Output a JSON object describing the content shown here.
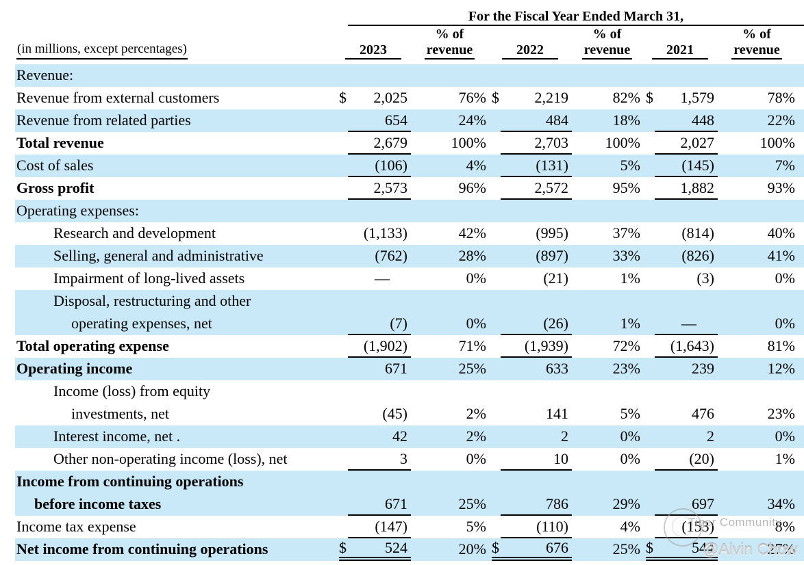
{
  "colors": {
    "row_band": "#c9e8f8",
    "text": "#000000",
    "rule": "#000000",
    "watermark": "#acacac"
  },
  "table": {
    "fiscal_header": "For the Fiscal Year Ended March 31,",
    "left_header": "(in millions, except percentages)",
    "currency_symbol": "$",
    "em_dash": "—",
    "columns": [
      {
        "label": "2023"
      },
      {
        "line1": "% of",
        "line2": "revenue"
      },
      {
        "label": "2022"
      },
      {
        "line1": "% of",
        "line2": "revenue"
      },
      {
        "label": "2021"
      },
      {
        "line1": "% of",
        "line2": "revenue"
      }
    ],
    "rows": [
      {
        "label": "Revenue:",
        "bg": "blue",
        "vals": []
      },
      {
        "label": "Revenue from external customers",
        "bg": "white",
        "dollar": true,
        "vals": [
          "2,025",
          "76%",
          "2,219",
          "82%",
          "1,579",
          "78%"
        ]
      },
      {
        "label": "Revenue from related parties",
        "bg": "blue",
        "ul": true,
        "vals": [
          "654",
          "24%",
          "484",
          "18%",
          "448",
          "22%"
        ]
      },
      {
        "label": "Total revenue",
        "bold": true,
        "bg": "white",
        "ul": true,
        "vals": [
          "2,679",
          "100%",
          "2,703",
          "100%",
          "2,027",
          "100%"
        ]
      },
      {
        "label": "Cost of sales",
        "bg": "blue",
        "ul": true,
        "vals": [
          "(106)",
          "4%",
          "(131)",
          "5%",
          "(145)",
          "7%"
        ]
      },
      {
        "label": "Gross profit",
        "bold": true,
        "bg": "white",
        "ul": true,
        "vals": [
          "2,573",
          "96%",
          "2,572",
          "95%",
          "1,882",
          "93%"
        ]
      },
      {
        "label": "Operating expenses:",
        "bg": "blue",
        "vals": []
      },
      {
        "label": "Research and development",
        "indent": 1,
        "bg": "white",
        "vals": [
          "(1,133)",
          "42%",
          "(995)",
          "37%",
          "(814)",
          "40%"
        ]
      },
      {
        "label": "Selling, general and administrative",
        "indent": 1,
        "bg": "blue",
        "vals": [
          "(762)",
          "28%",
          "(897)",
          "33%",
          "(826)",
          "41%"
        ]
      },
      {
        "label": "Impairment of long-lived assets",
        "indent": 1,
        "bg": "white",
        "vals": [
          "—",
          "0%",
          "(21)",
          "1%",
          "(3)",
          "0%"
        ]
      },
      {
        "label": "Disposal, restructuring and other",
        "label2": "operating expenses, net",
        "indent": 1,
        "bg": "blue",
        "ul": true,
        "vals": [
          "(7)",
          "0%",
          "(26)",
          "1%",
          "—",
          "0%"
        ]
      },
      {
        "label": "Total operating expense",
        "bold": true,
        "bg": "white",
        "ul": true,
        "vals": [
          "(1,902)",
          "71%",
          "(1,939)",
          "72%",
          "(1,643)",
          "81%"
        ]
      },
      {
        "label": "Operating income",
        "bold": true,
        "bg": "blue",
        "vals": [
          "671",
          "25%",
          "633",
          "23%",
          "239",
          "12%"
        ]
      },
      {
        "label": "Income (loss) from equity",
        "label2": "investments, net",
        "indent": 1,
        "bg": "white",
        "vals": [
          "(45)",
          "2%",
          "141",
          "5%",
          "476",
          "23%"
        ]
      },
      {
        "label": "Interest income, net .",
        "indent": 1,
        "bg": "blue",
        "vals": [
          "42",
          "2%",
          "2",
          "0%",
          "2",
          "0%"
        ]
      },
      {
        "label": "Other non-operating income (loss), net",
        "indent": 1,
        "bg": "white",
        "ul": true,
        "vals": [
          "3",
          "0%",
          "10",
          "0%",
          "(20)",
          "1%"
        ]
      },
      {
        "label": "Income from continuing operations",
        "label2": "before income taxes",
        "bold": true,
        "bg": "blue",
        "ul": true,
        "vals": [
          "671",
          "25%",
          "786",
          "29%",
          "697",
          "34%"
        ]
      },
      {
        "label": "Income tax expense",
        "bg": "white",
        "ul": true,
        "vals": [
          "(147)",
          "5%",
          "(110)",
          "4%",
          "(153)",
          "8%"
        ]
      },
      {
        "label": "Net income from continuing operations",
        "bold": true,
        "bg": "blue",
        "dollar": true,
        "dul": true,
        "vals": [
          "524",
          "20%",
          "676",
          "25%",
          "544",
          "27%"
        ]
      }
    ]
  },
  "watermark": {
    "community": "Tiger Community",
    "author": "@Alvin Chow"
  }
}
